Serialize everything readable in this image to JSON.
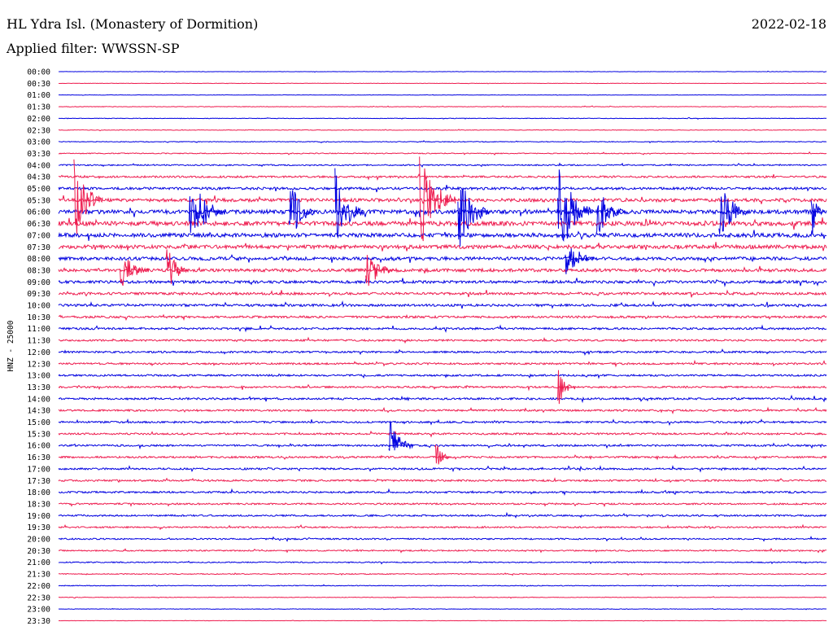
{
  "header": {
    "station": "HL Ydra Isl. (Monastery of Dormition)",
    "date": "2022-02-18",
    "filter": "Applied filter: WWSSN-SP"
  },
  "chart_data": {
    "type": "line",
    "title": "HL Ydra Isl. (Monastery of Dormition)",
    "subtitle": "Applied filter: WWSSN-SP",
    "date": "2022-02-18",
    "ylabel": "HNZ - 25000",
    "xlabel": "",
    "grid": false,
    "colors": [
      "#0000e0",
      "#ee1c4f"
    ],
    "trace_labels": [
      "00:00",
      "00:30",
      "01:00",
      "01:30",
      "02:00",
      "02:30",
      "03:00",
      "03:30",
      "04:00",
      "04:30",
      "05:00",
      "05:30",
      "06:00",
      "06:30",
      "07:00",
      "07:30",
      "08:00",
      "08:30",
      "09:00",
      "09:30",
      "10:00",
      "10:30",
      "11:00",
      "11:30",
      "12:00",
      "12:30",
      "13:00",
      "13:30",
      "14:00",
      "14:30",
      "15:00",
      "15:30",
      "16:00",
      "16:30",
      "17:00",
      "17:30",
      "18:00",
      "18:30",
      "19:00",
      "19:30",
      "20:00",
      "20:30",
      "21:00",
      "21:30",
      "22:00",
      "22:30",
      "23:00",
      "23:30"
    ],
    "noise_level": [
      0.2,
      0.2,
      0.2,
      0.3,
      0.3,
      0.3,
      0.4,
      0.5,
      0.7,
      1.0,
      1.4,
      1.8,
      2.2,
      2.4,
      2.2,
      2.0,
      1.8,
      1.7,
      1.5,
      1.4,
      1.3,
      1.2,
      1.1,
      1.0,
      1.0,
      1.0,
      1.0,
      1.0,
      1.1,
      1.0,
      1.0,
      1.0,
      1.0,
      1.0,
      1.0,
      1.0,
      1.0,
      0.9,
      0.9,
      0.8,
      0.8,
      0.7,
      0.6,
      0.5,
      0.4,
      0.3,
      0.3,
      0.2
    ],
    "events": [
      {
        "time": 0.35,
        "row_span": 7,
        "amplitude": 60
      },
      {
        "time": 0.85,
        "row_span": 6,
        "amplitude": 42
      },
      {
        "time": 0.44,
        "row_span": 5,
        "amplitude": 35
      },
      {
        "time": 0.27,
        "row_span": 8,
        "amplitude": 55
      },
      {
        "time": 0.11,
        "row_span": 4,
        "amplitude": 30
      },
      {
        "time": 0.46,
        "row_span": 4,
        "amplitude": 28
      },
      {
        "time": 0.72,
        "row_span": 3,
        "amplitude": 30
      },
      {
        "time": 0.66,
        "row_span": 3,
        "amplitude": 22
      }
    ]
  }
}
